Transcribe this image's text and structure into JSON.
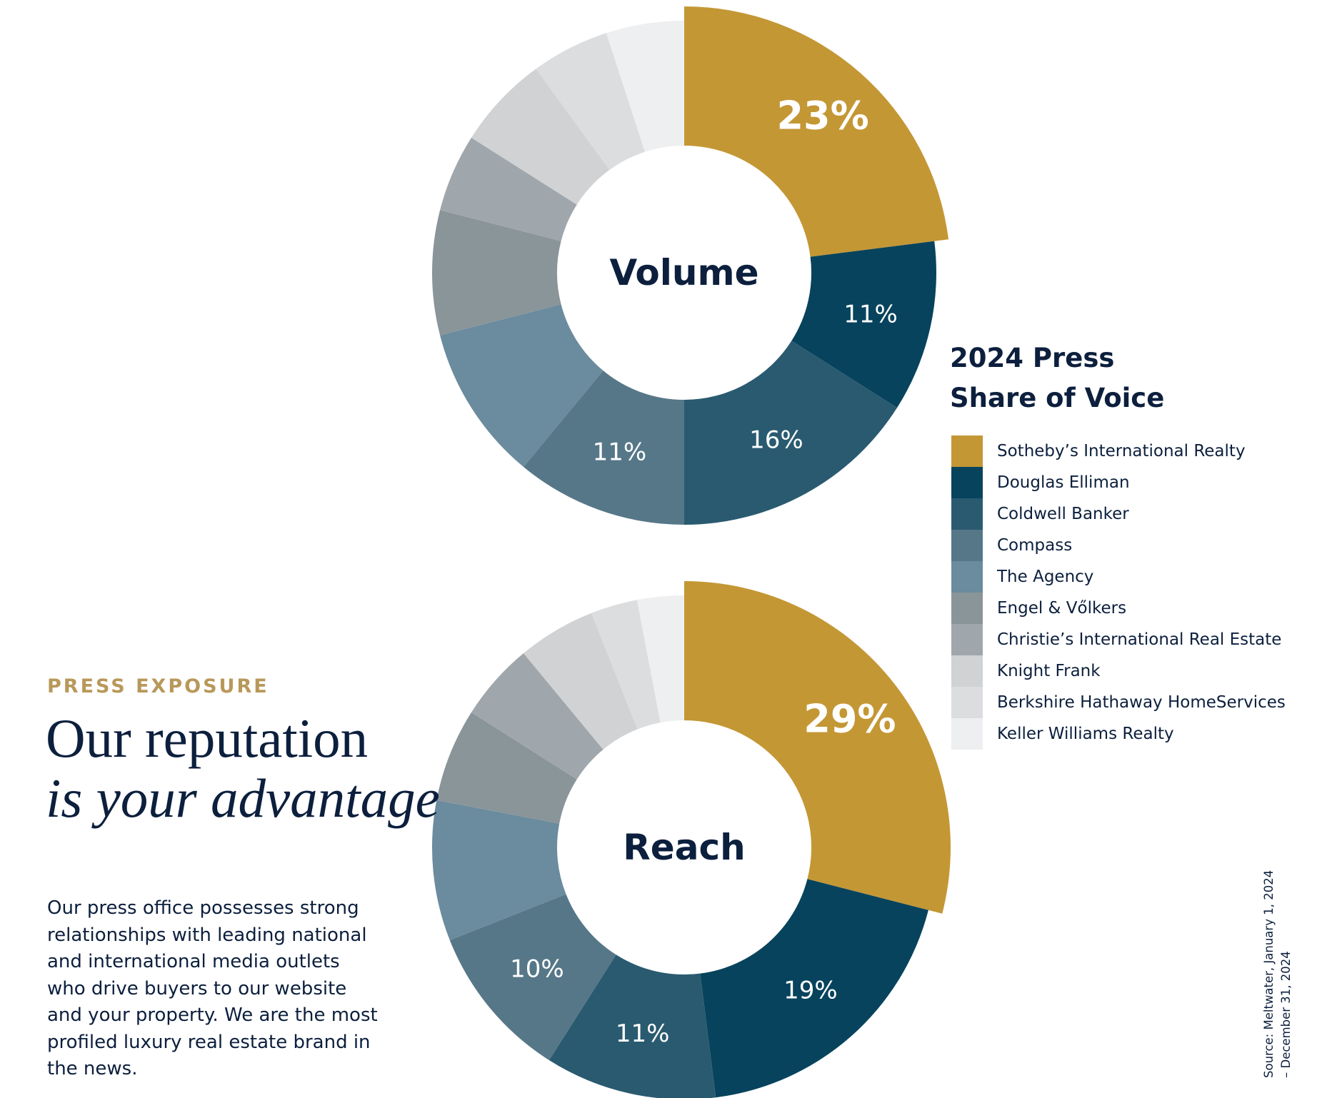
{
  "legend": {
    "title_line1": "2024 Press",
    "title_line2": "Share of Voice",
    "items": [
      {
        "label": "Sotheby’s International Realty",
        "color": "#c49735"
      },
      {
        "label": "Douglas Elliman",
        "color": "#07435d"
      },
      {
        "label": "Coldwell Banker",
        "color": "#2a5a70"
      },
      {
        "label": "Compass",
        "color": "#567788"
      },
      {
        "label": "The Agency",
        "color": "#6b8b9e"
      },
      {
        "label": "Engel & Vőlkers",
        "color": "#8a9599"
      },
      {
        "label": "Christie’s International Real Estate",
        "color": "#a0a7ac"
      },
      {
        "label": "Knight Frank",
        "color": "#d0d2d4"
      },
      {
        "label": "Berkshire Hathaway HomeServices",
        "color": "#dcdddf"
      },
      {
        "label": "Keller Williams Realty",
        "color": "#eeeff0"
      }
    ]
  },
  "text": {
    "eyebrow": "PRESS EXPOSURE",
    "headline_line1": "Our reputation",
    "headline_line2": "is your advantage",
    "body": "Our press office possesses strong relationships with leading national and international media outlets who drive buyers to our website and your property. We are the most profiled luxury real estate brand in the news.",
    "source_line1": "Source: Meltwater, January 1, 2024",
    "source_line2": "– December 31, 2024"
  },
  "chart_data": [
    {
      "type": "pie",
      "title": "Volume",
      "categories": [
        "Sotheby’s International Realty",
        "Douglas Elliman",
        "Coldwell Banker",
        "Compass",
        "The Agency",
        "Engel & Vőlkers",
        "Christie’s International Real Estate",
        "Knight Frank",
        "Berkshire Hathaway HomeServices",
        "Keller Williams Realty"
      ],
      "values": [
        23,
        11,
        16,
        11,
        10,
        8,
        5,
        6,
        5,
        5
      ],
      "labels": [
        "23%",
        "11%",
        "16%",
        "11%",
        "",
        "",
        "",
        "",
        "",
        ""
      ]
    },
    {
      "type": "pie",
      "title": "Reach",
      "categories": [
        "Sotheby’s International Realty",
        "Douglas Elliman",
        "Coldwell Banker",
        "Compass",
        "The Agency",
        "Engel & Vőlkers",
        "Christie’s International Real Estate",
        "Knight Frank",
        "Berkshire Hathaway HomeServices",
        "Keller Williams Realty"
      ],
      "values": [
        29,
        19,
        11,
        10,
        9,
        6,
        5,
        5,
        3,
        3
      ],
      "labels": [
        "29%",
        "19%",
        "11%",
        "10%",
        "",
        "",
        "",
        "",
        "",
        ""
      ]
    }
  ]
}
